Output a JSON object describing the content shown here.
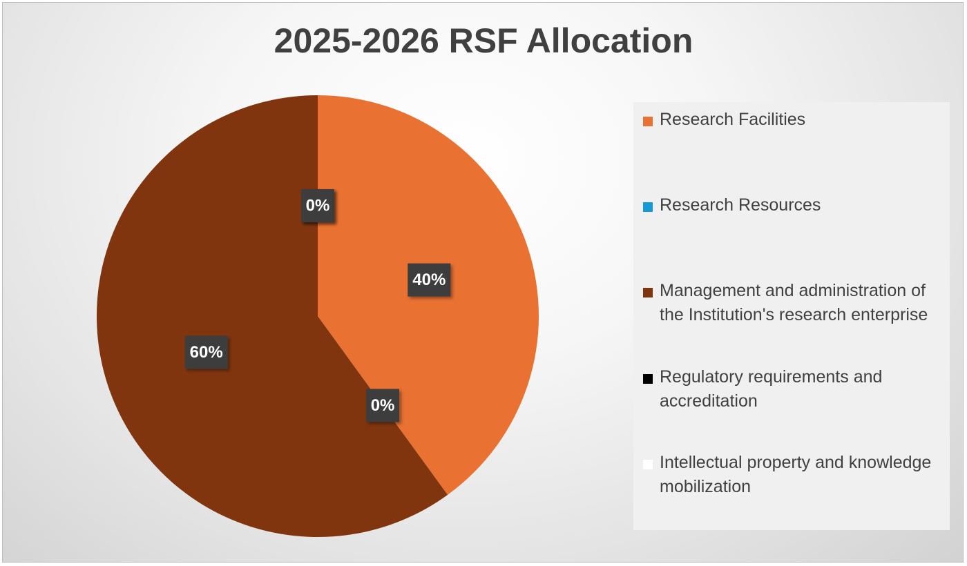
{
  "chart_data": {
    "type": "pie",
    "title": "2025-2026 RSF Allocation",
    "legend_position": "right",
    "slices": [
      {
        "label": "Research Facilities",
        "value": 40,
        "display": "40%",
        "color": "#E97132"
      },
      {
        "label": "Research Resources",
        "value": 0,
        "display": "0%",
        "color": "#1599D8"
      },
      {
        "label": "Management and administration of the Institution's research enterprise",
        "value": 60,
        "display": "60%",
        "color": "#80350E"
      },
      {
        "label": "Regulatory requirements and accreditation",
        "value": 0,
        "display": "0%",
        "color": "#000000"
      },
      {
        "label": "Intellectual property and knowledge mobilization",
        "value": 0,
        "display": "0%",
        "color": "#FFFFFF"
      }
    ]
  }
}
